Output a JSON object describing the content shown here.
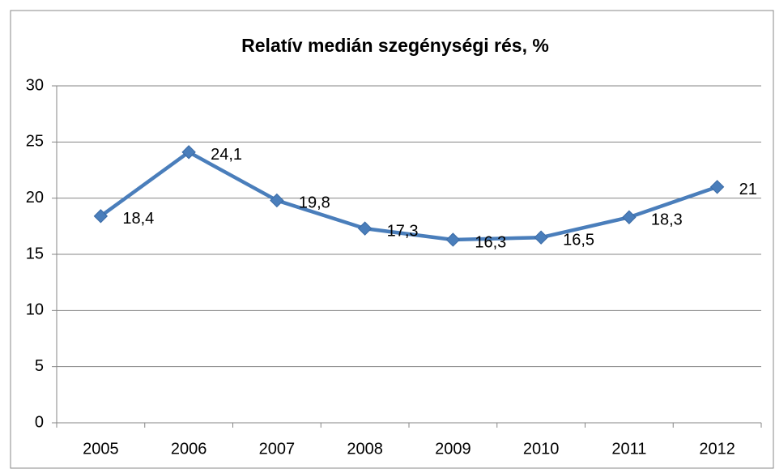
{
  "chart_data": {
    "type": "line",
    "title": "Relatív medián szegénységi rés, %",
    "categories": [
      "2005",
      "2006",
      "2007",
      "2008",
      "2009",
      "2010",
      "2011",
      "2012"
    ],
    "series": [
      {
        "name": "Relatív medián szegénységi rés",
        "color": "#4a7ebb",
        "values": [
          18.4,
          24.1,
          19.8,
          17.3,
          16.3,
          16.5,
          18.3,
          21
        ],
        "value_labels": [
          "18,4",
          "24,1",
          "19,8",
          "17,3",
          "16,3",
          "16,5",
          "18,3",
          "21"
        ]
      }
    ],
    "ylim": [
      0,
      30
    ],
    "yticks": [
      0,
      5,
      10,
      15,
      20,
      25,
      30
    ],
    "grid": true
  }
}
